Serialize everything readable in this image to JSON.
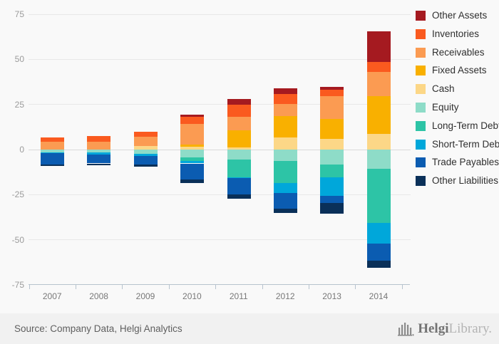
{
  "chart_data": {
    "type": "bar",
    "stacked": true,
    "orientation": "vertical",
    "title": "",
    "xlabel": "",
    "ylabel": "",
    "categories": [
      "2007",
      "2008",
      "2009",
      "2010",
      "2011",
      "2012",
      "2013",
      "2014"
    ],
    "ylim": [
      -75,
      75
    ],
    "yticks": [
      75,
      50,
      25,
      0,
      -25,
      -50,
      -75
    ],
    "grid": true,
    "legend_position": "right",
    "series": [
      {
        "name": "Other Assets",
        "side": "assets",
        "color": "#a51a20",
        "values": [
          0,
          0,
          0,
          1.2,
          3.3,
          3.0,
          1.7,
          17.2
        ]
      },
      {
        "name": "Inventories",
        "side": "assets",
        "color": "#fa5a1f",
        "values": [
          2.2,
          3.0,
          2.8,
          4.0,
          6.5,
          5.7,
          3.7,
          5.6
        ]
      },
      {
        "name": "Receivables",
        "side": "assets",
        "color": "#fb9b52",
        "values": [
          4.5,
          4.5,
          5.2,
          11.3,
          7.5,
          6.6,
          12.7,
          13.2
        ]
      },
      {
        "name": "Fixed Assets",
        "side": "assets",
        "color": "#f9b000",
        "values": [
          0,
          0,
          0,
          1.2,
          9.5,
          11.9,
          10.7,
          21.2
        ]
      },
      {
        "name": "Cash",
        "side": "assets",
        "color": "#fcd787",
        "values": [
          0,
          0,
          1.9,
          1.6,
          1.3,
          6.7,
          6.1,
          8.5
        ]
      },
      {
        "name": "Equity",
        "side": "liabilities",
        "color": "#8edcc8",
        "values": [
          1.7,
          1.4,
          2.4,
          4.4,
          5.4,
          6.5,
          8.1,
          10.8
        ]
      },
      {
        "name": "Long-Term Debt",
        "side": "liabilities",
        "color": "#2dc4a6",
        "values": [
          0,
          0,
          0,
          2.0,
          9.9,
          12.2,
          7.2,
          29.7
        ]
      },
      {
        "name": "Short-Term Debt",
        "side": "liabilities",
        "color": "#00a7da",
        "values": [
          0.4,
          1.4,
          1.3,
          1.3,
          0.5,
          5.4,
          10.3,
          11.6
        ]
      },
      {
        "name": "Trade Payables",
        "side": "liabilities",
        "color": "#0b5cb1",
        "values": [
          6.0,
          4.9,
          4.6,
          9.0,
          9.0,
          8.7,
          3.9,
          9.3
        ]
      },
      {
        "name": "Other Liabilities",
        "side": "liabilities",
        "color": "#0a3059",
        "values": [
          0.9,
          1.0,
          1.1,
          2.0,
          2.6,
          2.4,
          6.1,
          4.2
        ]
      }
    ]
  },
  "footer": {
    "source": "Source: Company Data, Helgi Analytics",
    "logo_primary": "Helgi",
    "logo_secondary": "Library."
  },
  "colors": {
    "background": "#f9f9f9",
    "footer_background": "#f1f1f1",
    "grid": "#e8e8e8",
    "zero_line": "#dadada",
    "axis_line": "#b7c3ce",
    "tick_text": "#9b9b9b",
    "year_text": "#787878",
    "legend_text": "#2f2f2f",
    "source_text": "#5f5f5f",
    "logo_icon": "#8c8c8c"
  }
}
